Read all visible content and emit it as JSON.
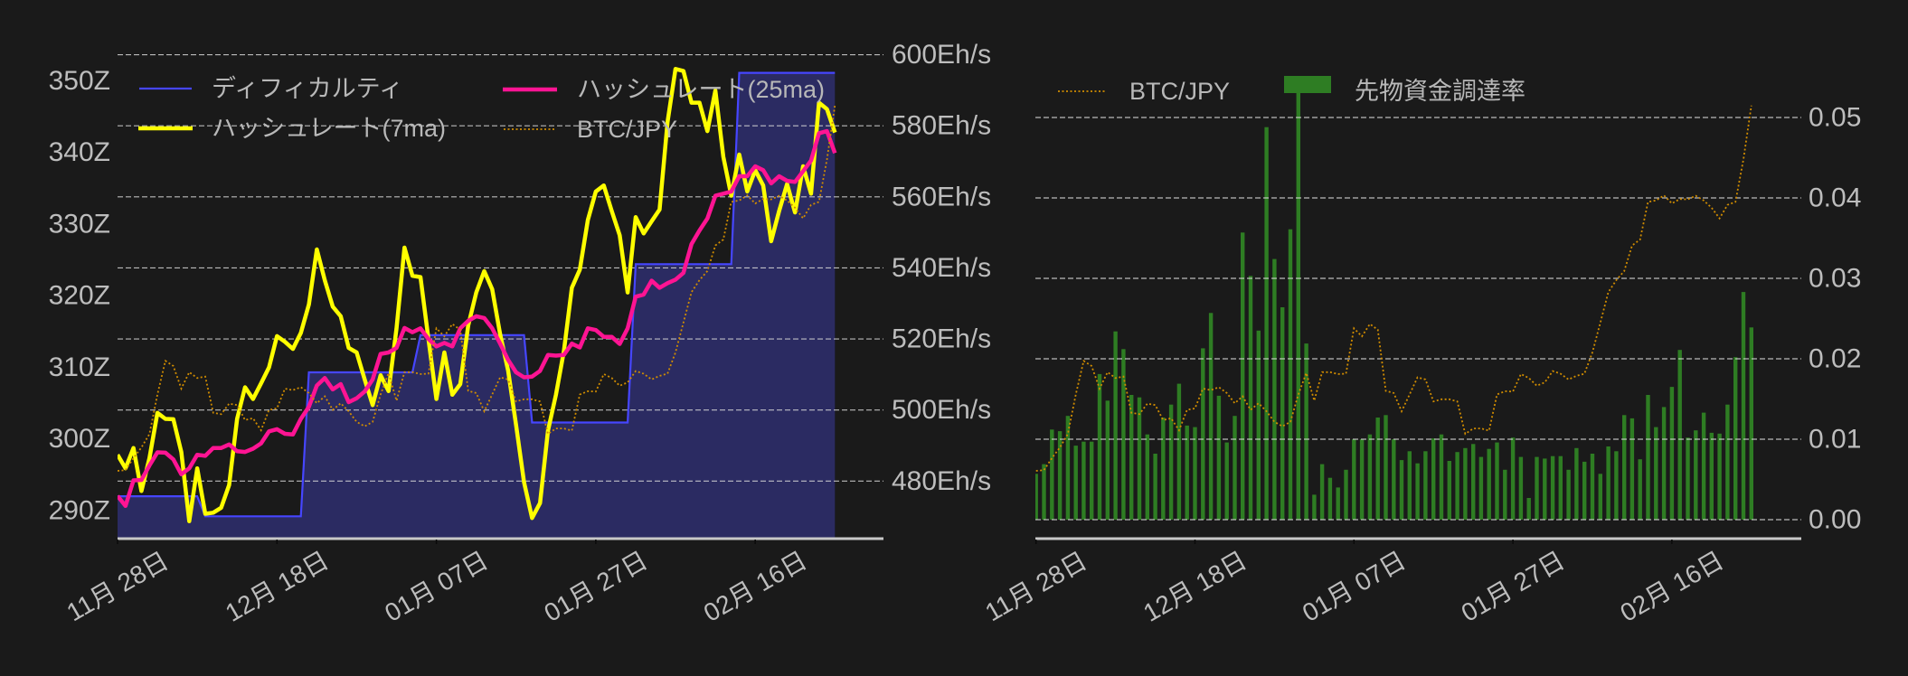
{
  "chart_data": [
    {
      "type": "line",
      "title": "",
      "x_index_start_tick": "11月 28日",
      "xlim": [
        0,
        96.09
      ],
      "x_ticks": {
        "index": [
          0,
          20,
          40,
          60,
          80
        ],
        "labels": [
          "11月 28日",
          "12月 18日",
          "01月 07日",
          "01月 27日",
          "02月 16日"
        ]
      },
      "y_left": {
        "ticks": [
          290,
          300,
          310,
          320,
          330,
          340,
          350
        ],
        "tick_labels": [
          "290Z",
          "300Z",
          "310Z",
          "320Z",
          "330Z",
          "340Z",
          "350Z"
        ],
        "ylim": [
          286.09,
          354.08
        ]
      },
      "y_right": {
        "ticks": [
          480,
          500,
          520,
          540,
          560,
          580,
          600
        ],
        "tick_labels": [
          "480Eh/s",
          "500Eh/s",
          "520Eh/s",
          "540Eh/s",
          "560Eh/s",
          "580Eh/s",
          "600Eh/s"
        ],
        "ylim": [
          463.8,
          600.9
        ]
      },
      "grid": "horizontal dashed on right axis ticks",
      "legend_position": "upper left, 2 columns",
      "series": [
        {
          "name": "ディフィカルティ",
          "axis": "left",
          "style": "line-with-fill",
          "color": "#4646ff",
          "fill": "#2b2b62",
          "values": [
            292.0,
            292.0,
            292.0,
            292.0,
            292.0,
            292.0,
            292.0,
            292.0,
            292.0,
            292.0,
            292.0,
            289.2,
            289.2,
            289.2,
            289.2,
            289.2,
            289.2,
            289.2,
            289.2,
            289.2,
            289.2,
            289.2,
            289.2,
            289.2,
            309.3,
            309.3,
            309.3,
            309.3,
            309.3,
            309.3,
            309.3,
            309.3,
            309.3,
            309.3,
            309.3,
            309.3,
            309.3,
            309.3,
            314.5,
            314.5,
            314.5,
            314.5,
            314.5,
            314.5,
            314.5,
            314.5,
            314.5,
            314.5,
            314.5,
            314.5,
            314.5,
            314.5,
            302.3,
            302.3,
            302.3,
            302.3,
            302.3,
            302.3,
            302.3,
            302.3,
            302.3,
            302.3,
            302.3,
            302.3,
            302.3,
            324.4,
            324.4,
            324.4,
            324.4,
            324.4,
            324.4,
            324.4,
            324.4,
            324.4,
            324.4,
            324.4,
            324.4,
            324.4,
            351.1,
            351.1,
            351.1,
            351.1,
            351.1,
            351.1,
            351.1,
            351.1,
            351.1,
            351.1,
            351.1,
            351.1,
            351.1
          ]
        },
        {
          "name": "ハッシュレート(7ma)",
          "axis": "right",
          "style": "line",
          "color": "#ffff00",
          "values": [
            487.4,
            483.6,
            489.3,
            477.2,
            486.5,
            499.2,
            497.5,
            497.4,
            488.2,
            468.7,
            483.6,
            470.8,
            471.1,
            472.5,
            478.9,
            497.5,
            506.4,
            503.1,
            507.5,
            512.0,
            520.8,
            519.2,
            517.2,
            521.7,
            529.7,
            545.2,
            536.5,
            529.1,
            526.4,
            517.5,
            516.2,
            508.6,
            501.4,
            509.8,
            505.3,
            523.0,
            545.7,
            537.8,
            537.4,
            520.0,
            503.1,
            516.2,
            504.3,
            507.3,
            523.8,
            533.1,
            539.1,
            534.0,
            521.3,
            511.1,
            495.8,
            479.7,
            469.6,
            473.8,
            494.2,
            504.3,
            516.6,
            534.4,
            539.5,
            553.5,
            561.5,
            563.2,
            556.0,
            549.2,
            533.1,
            554.3,
            549.7,
            553.1,
            556.4,
            581.0,
            596.0,
            595.4,
            586.5,
            586.5,
            578.5,
            589.9,
            571.3,
            560.3,
            571.9,
            561.5,
            567.5,
            563.2,
            547.5,
            556.0,
            563.6,
            555.6,
            568.6,
            560.9,
            586.5,
            584.7,
            578.1
          ]
        },
        {
          "name": "ハッシュレート(25ma)",
          "axis": "right",
          "style": "line",
          "color": "#ff1493",
          "values": [
            475.8,
            473.0,
            480.2,
            480.3,
            484.4,
            488.1,
            488.0,
            486.1,
            481.9,
            483.6,
            487.4,
            487.1,
            489.3,
            489.3,
            490.3,
            488.4,
            488.2,
            489.1,
            490.6,
            494.0,
            494.6,
            493.3,
            493.1,
            497.5,
            500.9,
            506.9,
            509.0,
            505.8,
            507.3,
            502.2,
            503.3,
            505.2,
            508.6,
            515.8,
            516.2,
            517.5,
            523.1,
            521.9,
            523.0,
            520.0,
            517.9,
            518.9,
            517.9,
            523.0,
            525.1,
            526.4,
            525.9,
            523.0,
            518.7,
            514.1,
            510.6,
            509.2,
            509.4,
            511.0,
            515.5,
            515.3,
            515.5,
            518.7,
            517.6,
            523.0,
            522.5,
            520.6,
            520.6,
            518.6,
            523.0,
            531.9,
            532.5,
            536.4,
            534.4,
            535.7,
            536.7,
            538.6,
            546.7,
            550.5,
            553.9,
            560.3,
            560.9,
            561.5,
            565.8,
            565.8,
            568.6,
            567.5,
            563.8,
            565.8,
            564.5,
            564.2,
            567.2,
            570.2,
            577.9,
            578.5,
            572.3
          ]
        },
        {
          "name": "BTC/JPY",
          "axis": "hidden (relative 0-1)",
          "style": "dotted",
          "color": "#d08c00",
          "ylim": [
            -0.1855,
            1.1477
          ],
          "values": [
            0,
            0.002,
            0.035,
            0.064,
            0.101,
            0.209,
            0.301,
            0.287,
            0.225,
            0.27,
            0.254,
            0.258,
            0.159,
            0.155,
            0.184,
            0.18,
            0.139,
            0.144,
            0.111,
            0.167,
            0.171,
            0.225,
            0.221,
            0.229,
            0.213,
            0.185,
            0.204,
            0.167,
            0.185,
            0.163,
            0.134,
            0.122,
            0.134,
            0.209,
            0.268,
            0.192,
            0.27,
            0.27,
            0.265,
            0.266,
            0.39,
            0.368,
            0.402,
            0.386,
            0.219,
            0.213,
            0.163,
            0.209,
            0.256,
            0.25,
            0.19,
            0.196,
            0.196,
            0.19,
            0.101,
            0.116,
            0.116,
            0.11,
            0.209,
            0.218,
            0.217,
            0.265,
            0.254,
            0.233,
            0.242,
            0.273,
            0.266,
            0.25,
            0.26,
            0.266,
            0.324,
            0.406,
            0.489,
            0.522,
            0.547,
            0.617,
            0.633,
            0.736,
            0.74,
            0.754,
            0.732,
            0.744,
            0.743,
            0.753,
            0.74,
            0.72,
            0.691,
            0.728,
            0.736,
            0.852,
            1.0
          ]
        }
      ]
    },
    {
      "type": "bar",
      "title": "",
      "x_index_start_tick": "11月 28日",
      "xlim": [
        -0.08,
        96.28
      ],
      "x_ticks": {
        "index": [
          0,
          20,
          40,
          60,
          80
        ],
        "labels": [
          "11月 28日",
          "12月 18日",
          "01月 07日",
          "01月 27日",
          "02月 16日"
        ]
      },
      "y_right": {
        "ticks": [
          0,
          0.01,
          0.02,
          0.03,
          0.04,
          0.05
        ],
        "tick_labels": [
          "0.00",
          "0.01",
          "0.02",
          "0.03",
          "0.04",
          "0.05"
        ],
        "ylim": [
          -0.00236,
          0.0582
        ]
      },
      "grid": "horizontal dashed on right axis ticks",
      "legend_position": "upper left, 1 row",
      "series": [
        {
          "name": "BTC/JPY",
          "axis": "hidden (relative 0-1)",
          "style": "dotted",
          "color": "#d08c00",
          "ylim": [
            -0.1855,
            1.1477
          ],
          "values_ref": "same series as chart_data.0.series.3"
        },
        {
          "name": "先物資金調達率",
          "axis": "right",
          "style": "bar",
          "color": "#2e7d23",
          "values": [
            0.0057,
            0.0069,
            0.0112,
            0.011,
            0.0129,
            0.0092,
            0.0097,
            0.0097,
            0.0181,
            0.0148,
            0.0234,
            0.0212,
            0.0155,
            0.0152,
            0.0106,
            0.0082,
            0.0127,
            0.0143,
            0.0169,
            0.0117,
            0.0115,
            0.0213,
            0.0257,
            0.0154,
            0.0096,
            0.0129,
            0.0357,
            0.0303,
            0.0235,
            0.0488,
            0.0324,
            0.0264,
            0.0361,
            0.054,
            0.0219,
            0.0031,
            0.0069,
            0.0052,
            0.004,
            0.0062,
            0.01,
            0.01,
            0.0106,
            0.0127,
            0.013,
            0.01,
            0.0074,
            0.0085,
            0.007,
            0.0085,
            0.0101,
            0.0106,
            0.0073,
            0.0084,
            0.0089,
            0.0094,
            0.0078,
            0.0088,
            0.0096,
            0.0062,
            0.0102,
            0.0078,
            0.0027,
            0.0078,
            0.0076,
            0.0079,
            0.0079,
            0.0062,
            0.0089,
            0.0072,
            0.0082,
            0.0057,
            0.0091,
            0.0085,
            0.013,
            0.0126,
            0.0075,
            0.0155,
            0.0115,
            0.014,
            0.0165,
            0.0211,
            0.0102,
            0.0111,
            0.0133,
            0.0108,
            0.0107,
            0.0143,
            0.0202,
            0.0283,
            0.0239
          ]
        }
      ]
    }
  ]
}
